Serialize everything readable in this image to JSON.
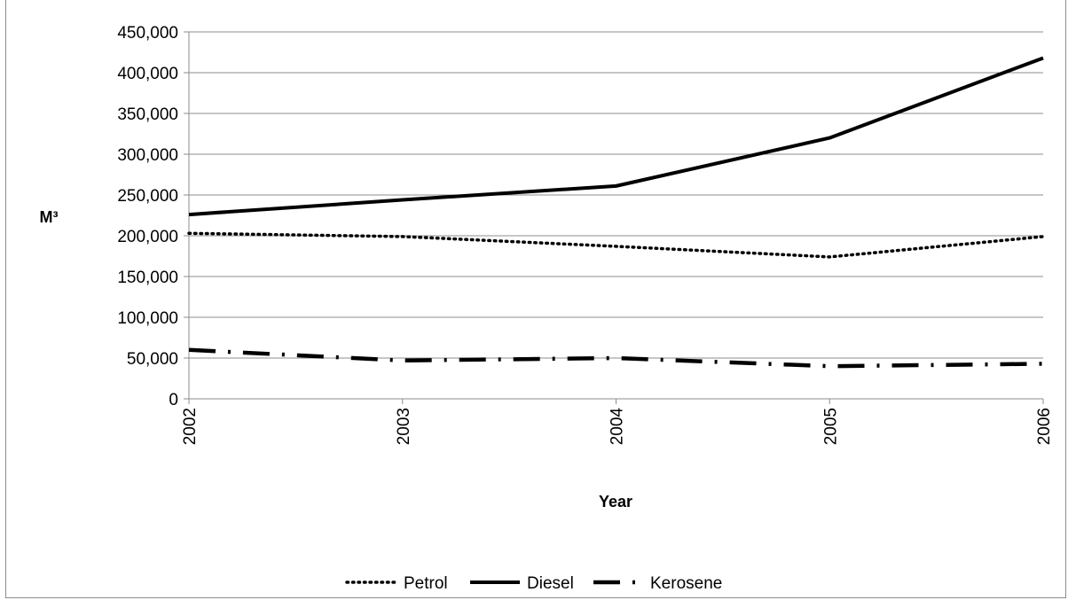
{
  "chart_data": {
    "type": "line",
    "title": "",
    "xlabel": "Year",
    "ylabel": "M³",
    "x": [
      "2002",
      "2003",
      "2004",
      "2005",
      "2006"
    ],
    "ylim": [
      0,
      450000
    ],
    "yticks": [
      "0",
      "50,000",
      "100,000",
      "150,000",
      "200,000",
      "250,000",
      "300,000",
      "350,000",
      "400,000",
      "450,000"
    ],
    "grid": true,
    "legend_position": "bottom",
    "series": [
      {
        "name": "Petrol",
        "values": [
          203000,
          199000,
          187000,
          174000,
          199000
        ],
        "style": "dotted",
        "color": "#000000"
      },
      {
        "name": "Diesel",
        "values": [
          226000,
          244000,
          261000,
          320000,
          418000
        ],
        "style": "solid",
        "color": "#000000"
      },
      {
        "name": "Kerosene",
        "values": [
          60000,
          47000,
          50000,
          40000,
          43000
        ],
        "style": "long-dash-dot",
        "color": "#000000"
      }
    ]
  }
}
